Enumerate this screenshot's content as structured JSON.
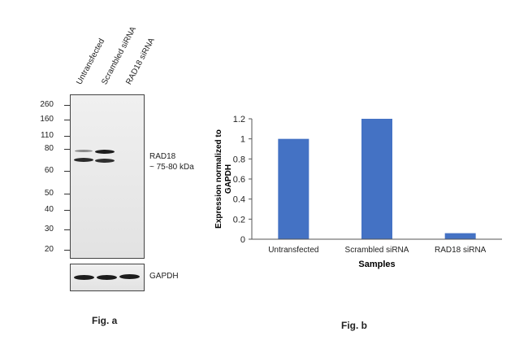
{
  "fig_a": {
    "lanes": [
      "Untransfected",
      "Scrambled siRNA",
      "RAD18 siRNA"
    ],
    "mw_markers": [
      "260",
      "160",
      "110",
      "80",
      "60",
      "50",
      "40",
      "30",
      "20"
    ],
    "target_label": "RAD18",
    "target_size": "~ 75-80 kDa",
    "loading_label": "GAPDH",
    "caption": "Fig. a"
  },
  "fig_b": {
    "caption": "Fig. b"
  },
  "chart_data": {
    "type": "bar",
    "categories": [
      "Untransfected",
      "Scrambled siRNA",
      "RAD18 siRNA"
    ],
    "values": [
      1.0,
      1.2,
      0.06
    ],
    "xlabel": "Samples",
    "ylabel": "Expression normalized to GAPDH",
    "ylim": [
      0,
      1.2
    ],
    "yticks": [
      "0",
      "0.2",
      "0.4",
      "0.6",
      "0.8",
      "1",
      "1.2"
    ],
    "bar_color": "#4472c4",
    "grid": false
  }
}
